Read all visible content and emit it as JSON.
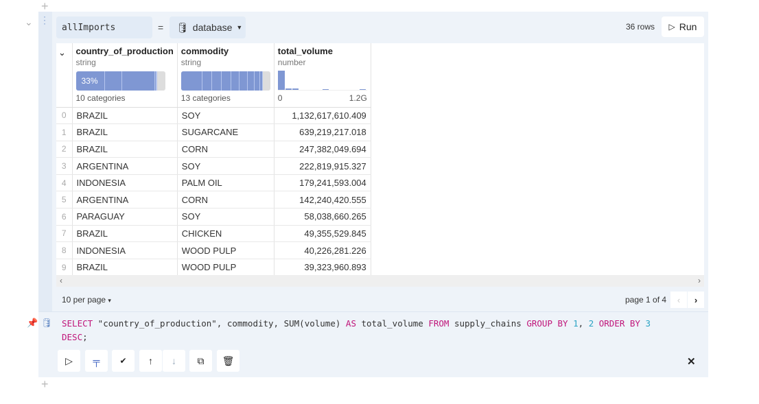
{
  "cell": {
    "variable": "allImports",
    "equals": "=",
    "source": "database",
    "rows": "36 rows",
    "run": "Run"
  },
  "columns": [
    {
      "name": "country_of_production",
      "type": "string",
      "summary": "10 categories",
      "top_pct": "33%"
    },
    {
      "name": "commodity",
      "type": "string",
      "summary": "13 categories"
    },
    {
      "name": "total_volume",
      "type": "number",
      "min": "0",
      "max": "1.2G"
    }
  ],
  "rows": [
    [
      "0",
      "BRAZIL",
      "SOY",
      "1,132,617,610.409"
    ],
    [
      "1",
      "BRAZIL",
      "SUGARCANE",
      "639,219,217.018"
    ],
    [
      "2",
      "BRAZIL",
      "CORN",
      "247,382,049.694"
    ],
    [
      "3",
      "ARGENTINA",
      "SOY",
      "222,819,915.327"
    ],
    [
      "4",
      "INDONESIA",
      "PALM OIL",
      "179,241,593.004"
    ],
    [
      "5",
      "ARGENTINA",
      "CORN",
      "142,240,420.555"
    ],
    [
      "6",
      "PARAGUAY",
      "SOY",
      "58,038,660.265"
    ],
    [
      "7",
      "BRAZIL",
      "CHICKEN",
      "49,355,529.845"
    ],
    [
      "8",
      "INDONESIA",
      "WOOD PULP",
      "40,226,281.226"
    ],
    [
      "9",
      "BRAZIL",
      "WOOD PULP",
      "39,323,960.893"
    ]
  ],
  "pagination": {
    "per_page": "10 per page",
    "page": "page 1 of 4"
  },
  "sql": {
    "t1": "SELECT",
    "t2": " \"country_of_production\", commodity, SUM(volume) ",
    "t3": "AS",
    "t4": " total_volume ",
    "t5": "FROM",
    "t6": " supply_chains ",
    "t7": "GROUP BY",
    "t8": " ",
    "t9": "1",
    "t10": ", ",
    "t11": "2",
    "t12": " ",
    "t13": "ORDER BY",
    "t14": " ",
    "t15": "3",
    "t16": "DESC",
    "t17": ";"
  },
  "accent": "#7f97d3"
}
